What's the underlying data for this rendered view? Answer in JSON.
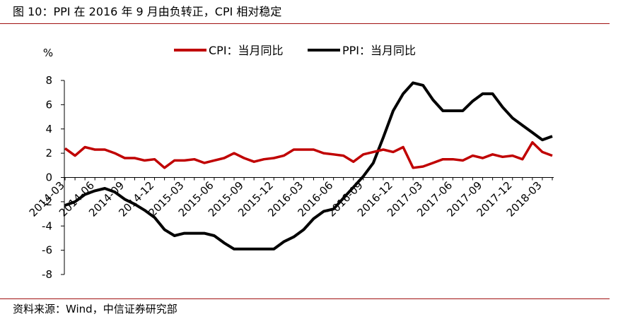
{
  "header": {
    "title": "图 10：PPI 在 2016 年 9 月由负转正，CPI 相对稳定"
  },
  "footer": {
    "source": "资料来源：Wind，中信证券研究部"
  },
  "chart_data": {
    "type": "line",
    "title": "图 10：PPI 在 2016 年 9 月由负转正，CPI 相对稳定",
    "ylabel": "%",
    "xlabel": "",
    "ylim": [
      -8,
      8
    ],
    "yticks": [
      -8,
      -6,
      -4,
      -2,
      0,
      2,
      4,
      6,
      8
    ],
    "legend_position": "top",
    "grid": false,
    "x": [
      "2014-03",
      "2014-04",
      "2014-05",
      "2014-06",
      "2014-07",
      "2014-08",
      "2014-09",
      "2014-10",
      "2014-11",
      "2014-12",
      "2015-01",
      "2015-02",
      "2015-03",
      "2015-04",
      "2015-05",
      "2015-06",
      "2015-07",
      "2015-08",
      "2015-09",
      "2015-10",
      "2015-11",
      "2015-12",
      "2016-01",
      "2016-02",
      "2016-03",
      "2016-04",
      "2016-05",
      "2016-06",
      "2016-07",
      "2016-08",
      "2016-09",
      "2016-10",
      "2016-11",
      "2016-12",
      "2017-01",
      "2017-02",
      "2017-03",
      "2017-04",
      "2017-05",
      "2017-06",
      "2017-07",
      "2017-08",
      "2017-09",
      "2017-10",
      "2017-11",
      "2017-12",
      "2018-01",
      "2018-02",
      "2018-03",
      "2018-04"
    ],
    "xtick_labels": [
      "2014-03",
      "2014-06",
      "2014-09",
      "2014-12",
      "2015-03",
      "2015-06",
      "2015-09",
      "2015-12",
      "2016-03",
      "2016-06",
      "2016-09",
      "2016-12",
      "2017-03",
      "2017-06",
      "2017-09",
      "2017-12",
      "2018-03"
    ],
    "series": [
      {
        "name": "CPI：当月同比",
        "color": "#c00000",
        "values": [
          2.4,
          1.8,
          2.5,
          2.3,
          2.3,
          2.0,
          1.6,
          1.6,
          1.4,
          1.5,
          0.8,
          1.4,
          1.4,
          1.5,
          1.2,
          1.4,
          1.6,
          2.0,
          1.6,
          1.3,
          1.5,
          1.6,
          1.8,
          2.3,
          2.3,
          2.3,
          2.0,
          1.9,
          1.8,
          1.3,
          1.9,
          2.1,
          2.3,
          2.1,
          2.5,
          0.8,
          0.9,
          1.2,
          1.5,
          1.5,
          1.4,
          1.8,
          1.6,
          1.9,
          1.7,
          1.8,
          1.5,
          2.9,
          2.1,
          1.8
        ]
      },
      {
        "name": "PPI：当月同比",
        "color": "#000000",
        "values": [
          -2.3,
          -2.0,
          -1.4,
          -1.1,
          -0.9,
          -1.2,
          -1.8,
          -2.2,
          -2.7,
          -3.3,
          -4.3,
          -4.8,
          -4.6,
          -4.6,
          -4.6,
          -4.8,
          -5.4,
          -5.9,
          -5.9,
          -5.9,
          -5.9,
          -5.9,
          -5.3,
          -4.9,
          -4.3,
          -3.4,
          -2.8,
          -2.6,
          -1.7,
          -0.8,
          0.1,
          1.2,
          3.3,
          5.5,
          6.9,
          7.8,
          7.6,
          6.4,
          5.5,
          5.5,
          5.5,
          6.3,
          6.9,
          6.9,
          5.8,
          4.9,
          4.3,
          3.7,
          3.1,
          3.4
        ]
      }
    ]
  }
}
